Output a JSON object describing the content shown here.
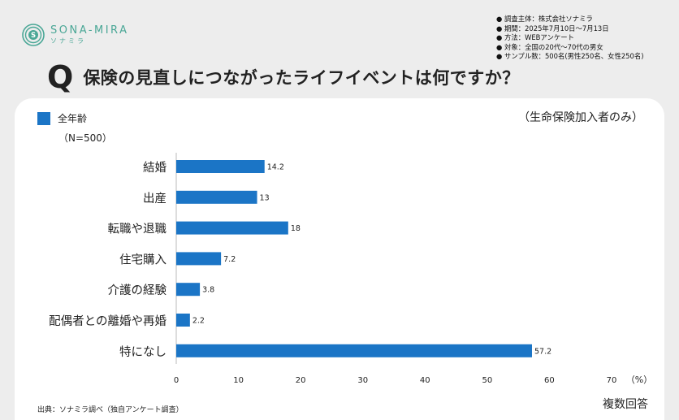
{
  "brand": {
    "name": "SONA-MIRA",
    "sub": "ソナミラ",
    "color": "#4aa796"
  },
  "survey_info": [
    "● 調査主体：株式会社ソナミラ",
    "● 期間：2025年7月10日～7月13日",
    "● 方法：WEBアンケート",
    "● 対象：全国の20代～70代の男女",
    "● サンプル数：500名(男性250名、女性250名)"
  ],
  "question": {
    "mark": "Q",
    "text": "保険の見直しにつながったライフイベントは何ですか？"
  },
  "legend": {
    "label": "全年齢",
    "n_note": "（N=500）"
  },
  "scope_note": "（生命保険加入者のみ）",
  "source": "出典：ソナミラ調べ（独自アンケート調査）",
  "multi_answer": "複数回答",
  "chart_data": {
    "type": "bar",
    "orientation": "horizontal",
    "categories": [
      "結婚",
      "出産",
      "転職や退職",
      "住宅購入",
      "介護の経験",
      "配偶者との離婚や再婚",
      "特になし"
    ],
    "series": [
      {
        "name": "全年齢",
        "values": [
          14.2,
          13,
          18,
          7.2,
          3.8,
          2.2,
          57.2
        ],
        "color": "#1b75c6"
      }
    ],
    "data_labels": [
      "14.2",
      "13",
      "18",
      "7.2",
      "3.8",
      "2.2",
      "57.2"
    ],
    "x_ticks": [
      "0",
      "10",
      "20",
      "30",
      "40",
      "50",
      "60",
      "70"
    ],
    "x_unit": "（%）",
    "xlim": [
      0,
      70
    ],
    "grid": false,
    "legend_position": "top-left"
  }
}
